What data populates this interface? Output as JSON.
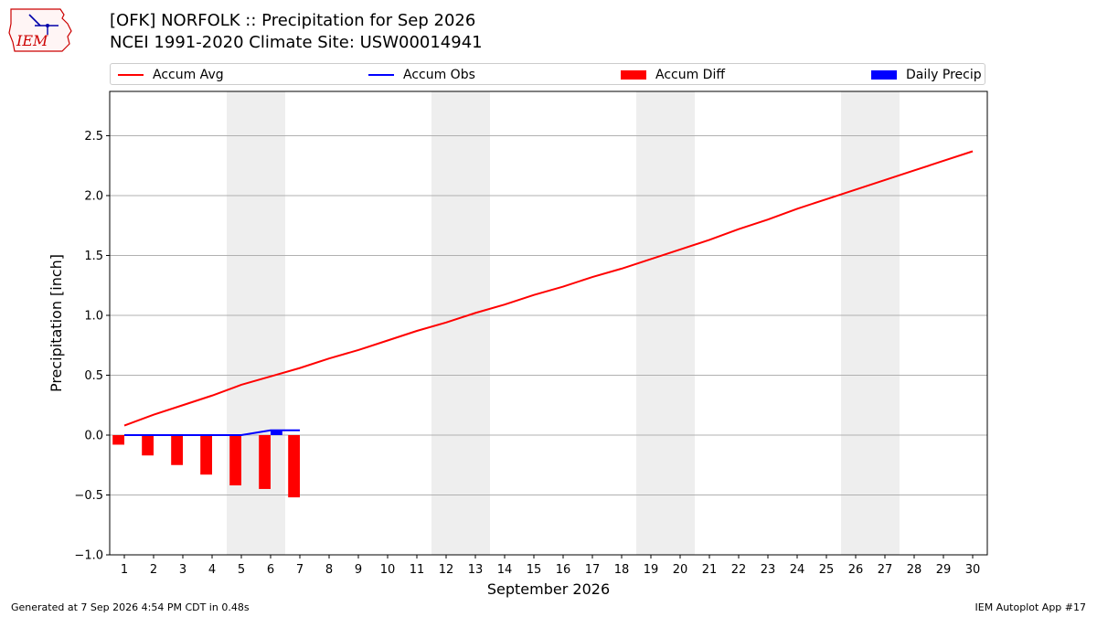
{
  "header": {
    "title_line1": "[OFK] NORFOLK :: Precipitation for Sep 2026",
    "title_line2": "NCEI 1991-2020 Climate Site: USW00014941"
  },
  "logo": {
    "text": "IEM",
    "icon": "iem-iowa-map-logo"
  },
  "legend": {
    "items": [
      {
        "label": "Accum Avg",
        "color": "#ff0000",
        "kind": "line"
      },
      {
        "label": "Accum Obs",
        "color": "#0000ff",
        "kind": "line"
      },
      {
        "label": "Accum Diff",
        "color": "#ff0000",
        "kind": "bar"
      },
      {
        "label": "Daily Precip",
        "color": "#0000ff",
        "kind": "bar"
      }
    ]
  },
  "footer": {
    "left": "Generated at 7 Sep 2026 4:54 PM CDT in 0.48s",
    "right": "IEM Autoplot App #17"
  },
  "chart_data": {
    "type": "line",
    "title": "[OFK] NORFOLK :: Precipitation for Sep 2026",
    "subtitle": "NCEI 1991-2020 Climate Site: USW00014941",
    "xlabel": "September 2026",
    "ylabel": "Precipitation [inch]",
    "x": [
      1,
      2,
      3,
      4,
      5,
      6,
      7,
      8,
      9,
      10,
      11,
      12,
      13,
      14,
      15,
      16,
      17,
      18,
      19,
      20,
      21,
      22,
      23,
      24,
      25,
      26,
      27,
      28,
      29,
      30
    ],
    "xlim": [
      0.5,
      30.5
    ],
    "ylim": [
      -1.0,
      2.87
    ],
    "yticks": [
      -1.0,
      -0.5,
      0.0,
      0.5,
      1.0,
      1.5,
      2.0,
      2.5
    ],
    "ytick_labels": [
      "−1.0",
      "−0.5",
      "0.0",
      "0.5",
      "1.0",
      "1.5",
      "2.0",
      "2.5"
    ],
    "grid": "horizontal",
    "legend_position": "top",
    "weekend_shading": [
      [
        4.5,
        6.5
      ],
      [
        11.5,
        13.5
      ],
      [
        18.5,
        20.5
      ],
      [
        25.5,
        27.5
      ]
    ],
    "shading_color": "#eeeeee",
    "series": [
      {
        "name": "Accum Avg",
        "type": "line",
        "color": "#ff0000",
        "x": [
          1,
          2,
          3,
          4,
          5,
          6,
          7,
          8,
          9,
          10,
          11,
          12,
          13,
          14,
          15,
          16,
          17,
          18,
          19,
          20,
          21,
          22,
          23,
          24,
          25,
          26,
          27,
          28,
          29,
          30
        ],
        "values": [
          0.08,
          0.17,
          0.25,
          0.33,
          0.42,
          0.49,
          0.56,
          0.64,
          0.71,
          0.79,
          0.87,
          0.94,
          1.02,
          1.09,
          1.17,
          1.24,
          1.32,
          1.39,
          1.47,
          1.55,
          1.63,
          1.72,
          1.8,
          1.89,
          1.97,
          2.05,
          2.13,
          2.21,
          2.29,
          2.37
        ]
      },
      {
        "name": "Accum Obs",
        "type": "line",
        "color": "#0000ff",
        "x": [
          1,
          2,
          3,
          4,
          5,
          6,
          7
        ],
        "values": [
          0.0,
          0.0,
          0.0,
          0.0,
          0.0,
          0.04,
          0.04
        ]
      },
      {
        "name": "Accum Diff",
        "type": "bar",
        "color": "#ff0000",
        "x": [
          1,
          2,
          3,
          4,
          5,
          6,
          7
        ],
        "values": [
          -0.08,
          -0.17,
          -0.25,
          -0.33,
          -0.42,
          -0.45,
          -0.52
        ]
      },
      {
        "name": "Daily Precip",
        "type": "bar",
        "color": "#0000ff",
        "x": [
          1,
          2,
          3,
          4,
          5,
          6,
          7
        ],
        "values": [
          0.0,
          0.0,
          0.0,
          0.0,
          0.0,
          0.04,
          0.0
        ]
      }
    ]
  }
}
